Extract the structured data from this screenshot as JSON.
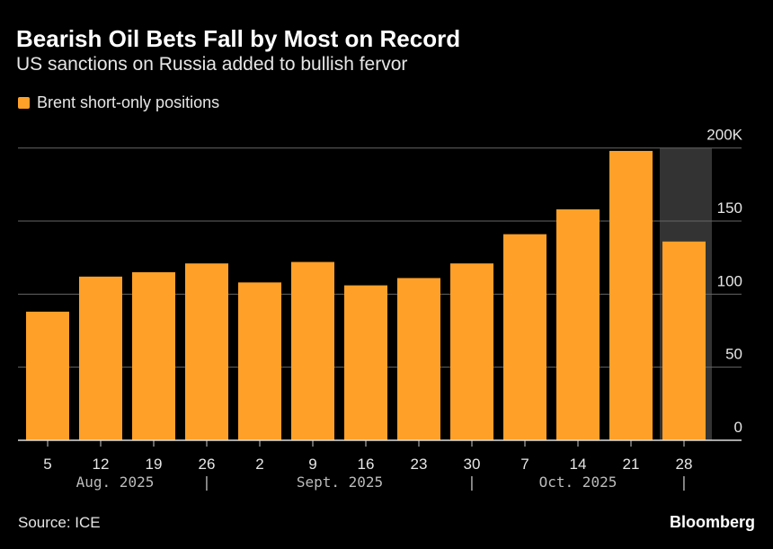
{
  "chart_data": {
    "type": "bar",
    "title": "Bearish Oil Bets Fall by Most on Record",
    "subtitle": "US sanctions on Russia added to bullish fervor",
    "legend": [
      "Brent short-only positions"
    ],
    "legend_placement": "top-left",
    "categories": [
      "5",
      "12",
      "19",
      "26",
      "2",
      "9",
      "16",
      "23",
      "30",
      "7",
      "14",
      "21",
      "28"
    ],
    "month_labels": [
      "Aug. 2025",
      "Sept. 2025",
      "Oct. 2025"
    ],
    "month_separator": "|",
    "series": [
      {
        "name": "Brent short-only positions",
        "values": [
          88,
          112,
          115,
          121,
          108,
          122,
          106,
          111,
          121,
          141,
          158,
          198,
          136
        ]
      }
    ],
    "ylim": [
      0,
      200
    ],
    "yticks": [
      0,
      50,
      100,
      150,
      200
    ],
    "ytick_labels": [
      "0",
      "50",
      "100",
      "150",
      "200K"
    ],
    "y_axis_side": "right",
    "grid": true,
    "highlighted_category": "28",
    "colors": {
      "bar": "#ffa028",
      "highlight": "#333333",
      "grid": "#666666",
      "background": "#000000"
    },
    "source": "Source: ICE",
    "brand": "Bloomberg"
  }
}
